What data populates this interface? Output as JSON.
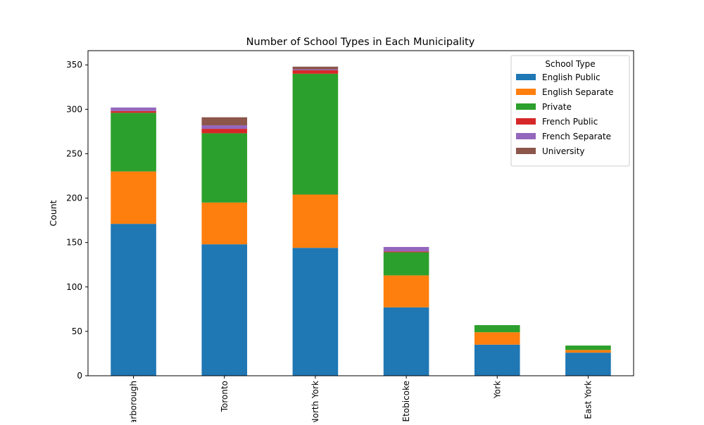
{
  "chart_data": {
    "type": "bar",
    "stacked": true,
    "title": "Number of School Types in Each Municipality",
    "xlabel": "",
    "ylabel": "Count",
    "ylim": [
      0,
      366
    ],
    "yticks": [
      0,
      50,
      100,
      150,
      200,
      250,
      300,
      350
    ],
    "grid": false,
    "legend": {
      "title": "School Type",
      "placement": "top-right"
    },
    "categories": [
      "Scarborough",
      "Toronto",
      "North York",
      "Etobicoke",
      "York",
      "East York"
    ],
    "series": [
      {
        "name": "English Public",
        "color": "#1f77b4",
        "values": [
          171,
          148,
          144,
          77,
          35,
          26
        ]
      },
      {
        "name": "English Separate",
        "color": "#ff7f0e",
        "values": [
          59,
          47,
          60,
          36,
          14,
          3
        ]
      },
      {
        "name": "Private",
        "color": "#2ca02c",
        "values": [
          66,
          78,
          136,
          26,
          8,
          5
        ]
      },
      {
        "name": "French Public",
        "color": "#d62728",
        "values": [
          2,
          5,
          4,
          1,
          0,
          0
        ]
      },
      {
        "name": "French Separate",
        "color": "#9467bd",
        "values": [
          4,
          4,
          1,
          5,
          0,
          0
        ]
      },
      {
        "name": "University",
        "color": "#8c564b",
        "values": [
          0,
          9,
          3,
          0,
          0,
          0
        ]
      }
    ]
  }
}
